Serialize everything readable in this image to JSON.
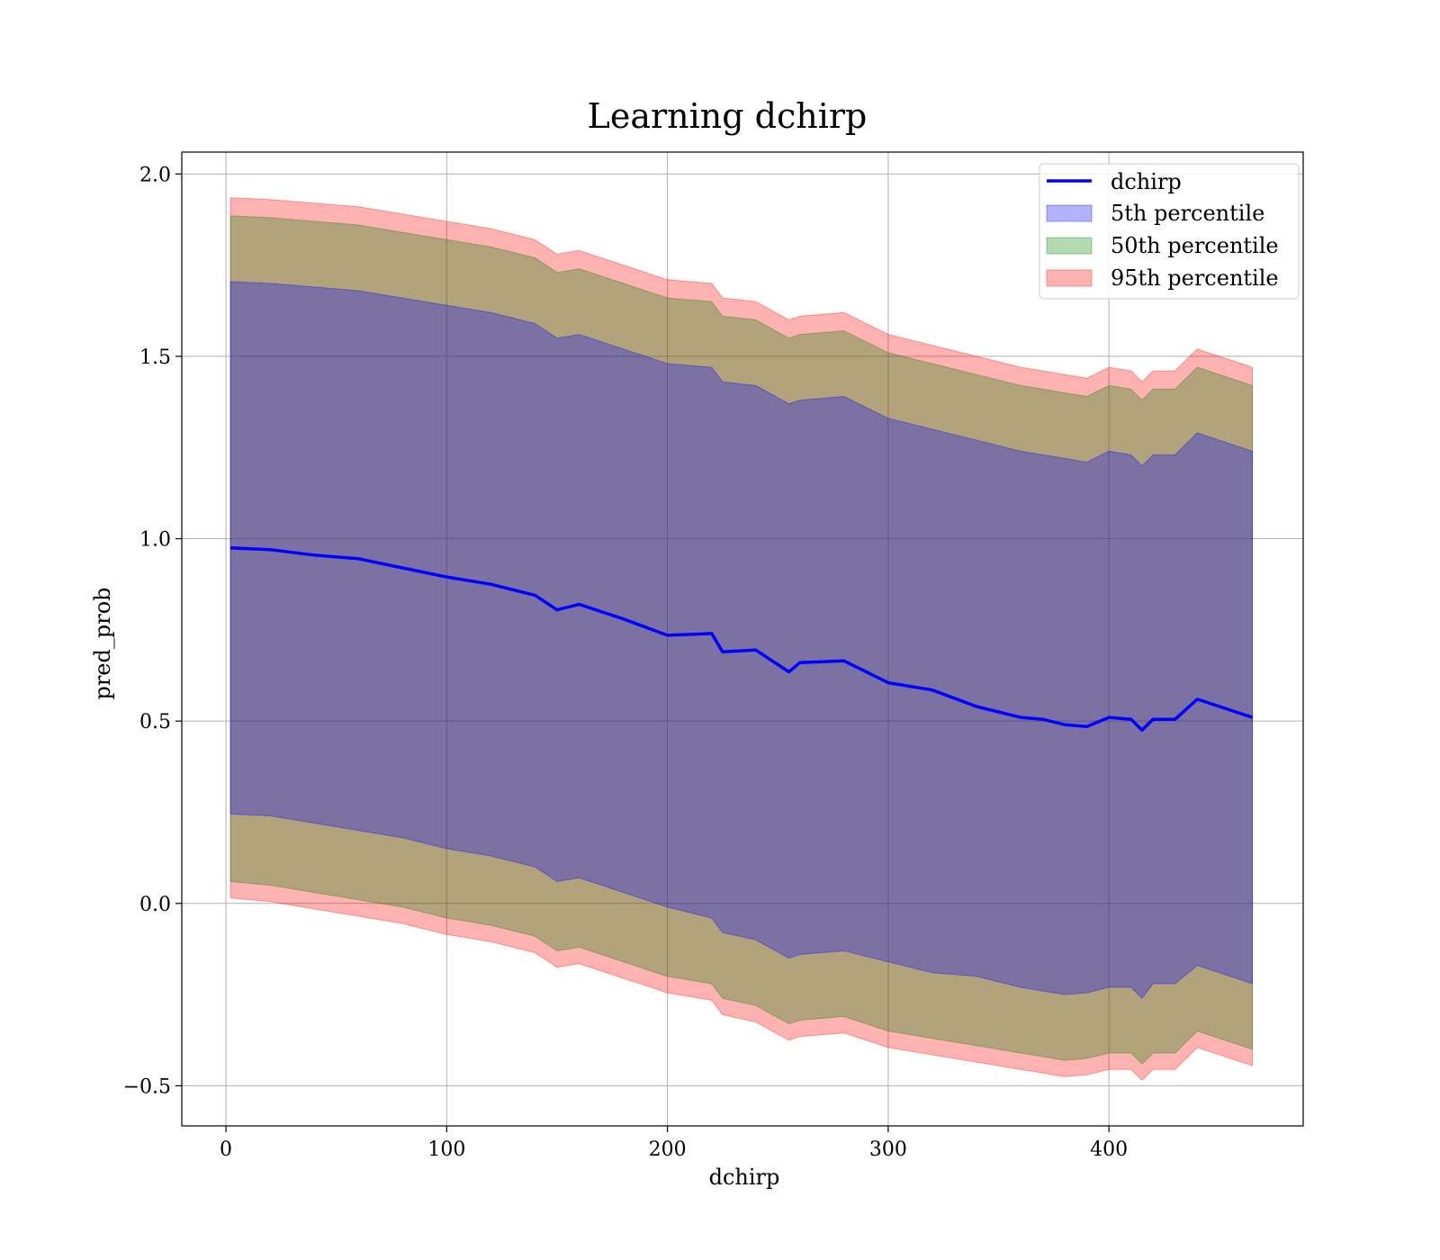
{
  "chart_data": {
    "type": "line",
    "title": "Learning dchirp",
    "xlabel": "dchirp",
    "ylabel": "pred_prob",
    "xlim": [
      -20,
      488
    ],
    "ylim": [
      -0.61,
      2.06
    ],
    "xticks": [
      0,
      100,
      200,
      300,
      400
    ],
    "yticks": [
      -0.5,
      0.0,
      0.5,
      1.0,
      1.5,
      2.0
    ],
    "xtick_labels": [
      "0",
      "100",
      "200",
      "300",
      "400"
    ],
    "ytick_labels": [
      "−0.5",
      "0.0",
      "0.5",
      "1.0",
      "1.5",
      "2.0"
    ],
    "grid": true,
    "legend_position": "top-right",
    "x": [
      2,
      20,
      40,
      60,
      80,
      100,
      120,
      140,
      150,
      160,
      180,
      200,
      220,
      225,
      240,
      255,
      260,
      280,
      300,
      320,
      340,
      360,
      370,
      380,
      390,
      400,
      410,
      415,
      420,
      430,
      440,
      465
    ],
    "series": [
      {
        "name": "dchirp",
        "kind": "line",
        "color": "#0000ff",
        "values": [
          0.975,
          0.97,
          0.955,
          0.945,
          0.92,
          0.895,
          0.875,
          0.845,
          0.805,
          0.82,
          0.78,
          0.735,
          0.74,
          0.69,
          0.695,
          0.635,
          0.66,
          0.665,
          0.605,
          0.585,
          0.54,
          0.51,
          0.505,
          0.49,
          0.485,
          0.51,
          0.505,
          0.475,
          0.505,
          0.505,
          0.56,
          0.51
        ]
      },
      {
        "name": "5th percentile",
        "kind": "band",
        "color": "#0000ff",
        "lower": [
          0.245,
          0.24,
          0.22,
          0.2,
          0.18,
          0.15,
          0.13,
          0.1,
          0.06,
          0.07,
          0.03,
          -0.01,
          -0.04,
          -0.08,
          -0.1,
          -0.15,
          -0.14,
          -0.13,
          -0.16,
          -0.19,
          -0.2,
          -0.23,
          -0.24,
          -0.25,
          -0.245,
          -0.23,
          -0.23,
          -0.26,
          -0.22,
          -0.22,
          -0.17,
          -0.22
        ],
        "upper": [
          1.705,
          1.7,
          1.69,
          1.68,
          1.66,
          1.64,
          1.62,
          1.59,
          1.55,
          1.56,
          1.52,
          1.48,
          1.47,
          1.43,
          1.42,
          1.37,
          1.38,
          1.39,
          1.33,
          1.3,
          1.27,
          1.24,
          1.23,
          1.22,
          1.21,
          1.24,
          1.23,
          1.2,
          1.23,
          1.23,
          1.29,
          1.24
        ]
      },
      {
        "name": "50th percentile",
        "kind": "band",
        "color": "#008000",
        "lower": [
          0.06,
          0.05,
          0.03,
          0.01,
          -0.01,
          -0.04,
          -0.06,
          -0.09,
          -0.13,
          -0.12,
          -0.16,
          -0.2,
          -0.22,
          -0.26,
          -0.28,
          -0.33,
          -0.32,
          -0.31,
          -0.35,
          -0.37,
          -0.39,
          -0.41,
          -0.42,
          -0.43,
          -0.425,
          -0.41,
          -0.41,
          -0.44,
          -0.41,
          -0.41,
          -0.35,
          -0.4
        ],
        "upper": [
          1.885,
          1.88,
          1.87,
          1.86,
          1.84,
          1.82,
          1.8,
          1.77,
          1.73,
          1.74,
          1.7,
          1.66,
          1.65,
          1.61,
          1.6,
          1.55,
          1.56,
          1.57,
          1.51,
          1.48,
          1.45,
          1.42,
          1.41,
          1.4,
          1.39,
          1.42,
          1.41,
          1.38,
          1.41,
          1.41,
          1.47,
          1.42
        ]
      },
      {
        "name": "95th percentile",
        "kind": "band",
        "color": "#ff0000",
        "lower": [
          0.015,
          0.005,
          -0.015,
          -0.035,
          -0.055,
          -0.085,
          -0.105,
          -0.135,
          -0.175,
          -0.165,
          -0.205,
          -0.245,
          -0.265,
          -0.305,
          -0.325,
          -0.375,
          -0.365,
          -0.355,
          -0.395,
          -0.415,
          -0.435,
          -0.455,
          -0.465,
          -0.475,
          -0.47,
          -0.455,
          -0.455,
          -0.485,
          -0.455,
          -0.455,
          -0.395,
          -0.445
        ],
        "upper": [
          1.935,
          1.93,
          1.92,
          1.91,
          1.89,
          1.87,
          1.85,
          1.82,
          1.78,
          1.79,
          1.75,
          1.71,
          1.7,
          1.66,
          1.65,
          1.6,
          1.61,
          1.62,
          1.56,
          1.53,
          1.5,
          1.47,
          1.46,
          1.45,
          1.44,
          1.47,
          1.46,
          1.43,
          1.46,
          1.46,
          1.52,
          1.47
        ]
      }
    ]
  }
}
